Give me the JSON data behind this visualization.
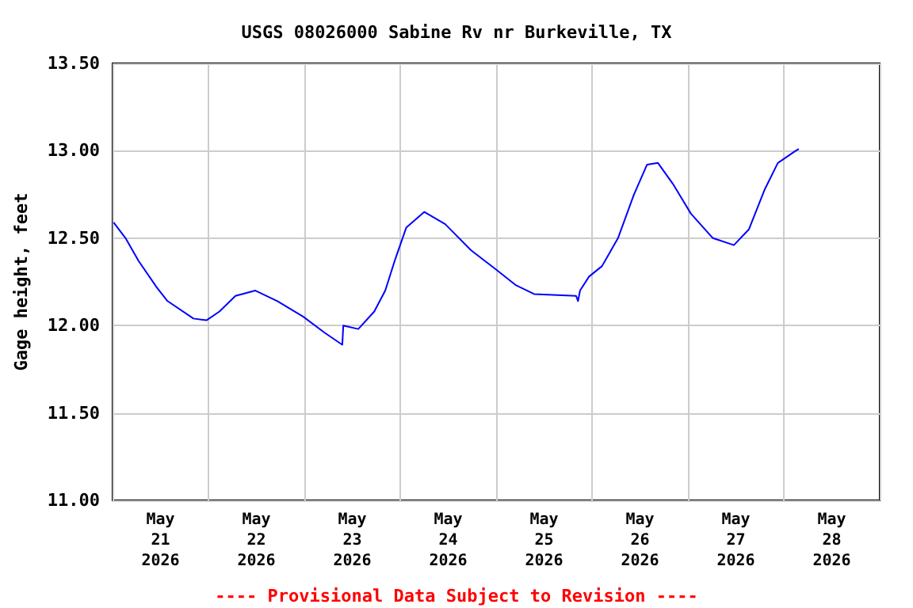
{
  "chart_data": {
    "type": "line",
    "title": "USGS 08026000 Sabine Rv nr Burkeville, TX",
    "ylabel": "Gage height, feet",
    "annotations": [
      "---- Provisional Data Subject to Revision ----"
    ],
    "x": [
      "2026-05-21T00:15",
      "2026-05-21T03:15",
      "2026-05-21T06:30",
      "2026-05-21T11:00",
      "2026-05-21T13:45",
      "2026-05-21T20:15",
      "2026-05-21T23:30",
      "2026-05-22T02:45",
      "2026-05-22T06:45",
      "2026-05-22T11:45",
      "2026-05-22T17:15",
      "2026-05-22T23:45",
      "2026-05-23T05:00",
      "2026-05-23T09:30",
      "2026-05-23T09:45",
      "2026-05-23T13:30",
      "2026-05-23T17:30",
      "2026-05-23T20:15",
      "2026-05-23T22:45",
      "2026-05-24T01:30",
      "2026-05-24T06:00",
      "2026-05-24T11:15",
      "2026-05-24T17:45",
      "2026-05-25T00:00",
      "2026-05-25T05:00",
      "2026-05-25T09:30",
      "2026-05-25T20:00",
      "2026-05-25T20:30",
      "2026-05-25T21:00",
      "2026-05-25T23:15",
      "2026-05-26T02:30",
      "2026-05-26T06:30",
      "2026-05-26T10:30",
      "2026-05-26T13:45",
      "2026-05-26T16:30",
      "2026-05-26T20:15",
      "2026-05-27T00:45",
      "2026-05-27T06:15",
      "2026-05-27T11:30",
      "2026-05-27T15:15",
      "2026-05-27T19:15",
      "2026-05-27T22:30",
      "2026-05-28T03:00",
      "2026-05-28T03:45"
    ],
    "series": [
      {
        "color": "#0000ff",
        "values": [
          12.59,
          12.5,
          12.37,
          12.22,
          12.14,
          12.04,
          12.03,
          12.08,
          12.17,
          12.2,
          12.14,
          12.05,
          11.96,
          11.89,
          12.0,
          11.98,
          12.08,
          12.2,
          12.38,
          12.56,
          12.65,
          12.58,
          12.43,
          12.32,
          12.23,
          12.18,
          12.17,
          12.14,
          12.2,
          12.28,
          12.34,
          12.5,
          12.75,
          12.92,
          12.93,
          12.81,
          12.64,
          12.5,
          12.46,
          12.55,
          12.78,
          12.93,
          13.0,
          13.01
        ]
      }
    ],
    "xlim": [
      "2026-05-21T00:00",
      "2026-05-29T00:00"
    ],
    "xticks": [
      {
        "value": "2026-05-21T00:00",
        "label": null
      },
      {
        "value": "2026-05-22T00:00",
        "label": null
      },
      {
        "value": "2026-05-23T00:00",
        "label": null
      },
      {
        "value": "2026-05-24T00:00",
        "label": null
      },
      {
        "value": "2026-05-25T00:00",
        "label": null
      },
      {
        "value": "2026-05-26T00:00",
        "label": null
      },
      {
        "value": "2026-05-27T00:00",
        "label": null
      },
      {
        "value": "2026-05-28T00:00",
        "label": null
      },
      {
        "value": "2026-05-29T00:00",
        "label": null
      },
      {
        "value": "2026-05-21T12:00",
        "label": "May\n21\n2026"
      },
      {
        "value": "2026-05-22T12:00",
        "label": "May\n22\n2026"
      },
      {
        "value": "2026-05-23T12:00",
        "label": "May\n23\n2026"
      },
      {
        "value": "2026-05-24T12:00",
        "label": "May\n24\n2026"
      },
      {
        "value": "2026-05-25T12:00",
        "label": "May\n25\n2026"
      },
      {
        "value": "2026-05-26T12:00",
        "label": "May\n26\n2026"
      },
      {
        "value": "2026-05-27T12:00",
        "label": "May\n27\n2026"
      },
      {
        "value": "2026-05-28T12:00",
        "label": "May\n28\n2026"
      }
    ],
    "ylim": [
      11,
      13.5
    ],
    "yticks": [
      {
        "value": 11,
        "label": "11.00"
      },
      {
        "value": 11.5,
        "label": "11.50"
      },
      {
        "value": 12,
        "label": "12.00"
      },
      {
        "value": 12.5,
        "label": "12.50"
      },
      {
        "value": 13,
        "label": "13.00"
      },
      {
        "value": 13.5,
        "label": "13.50"
      }
    ],
    "grid": true,
    "marker": "none",
    "line_style": "solid"
  }
}
